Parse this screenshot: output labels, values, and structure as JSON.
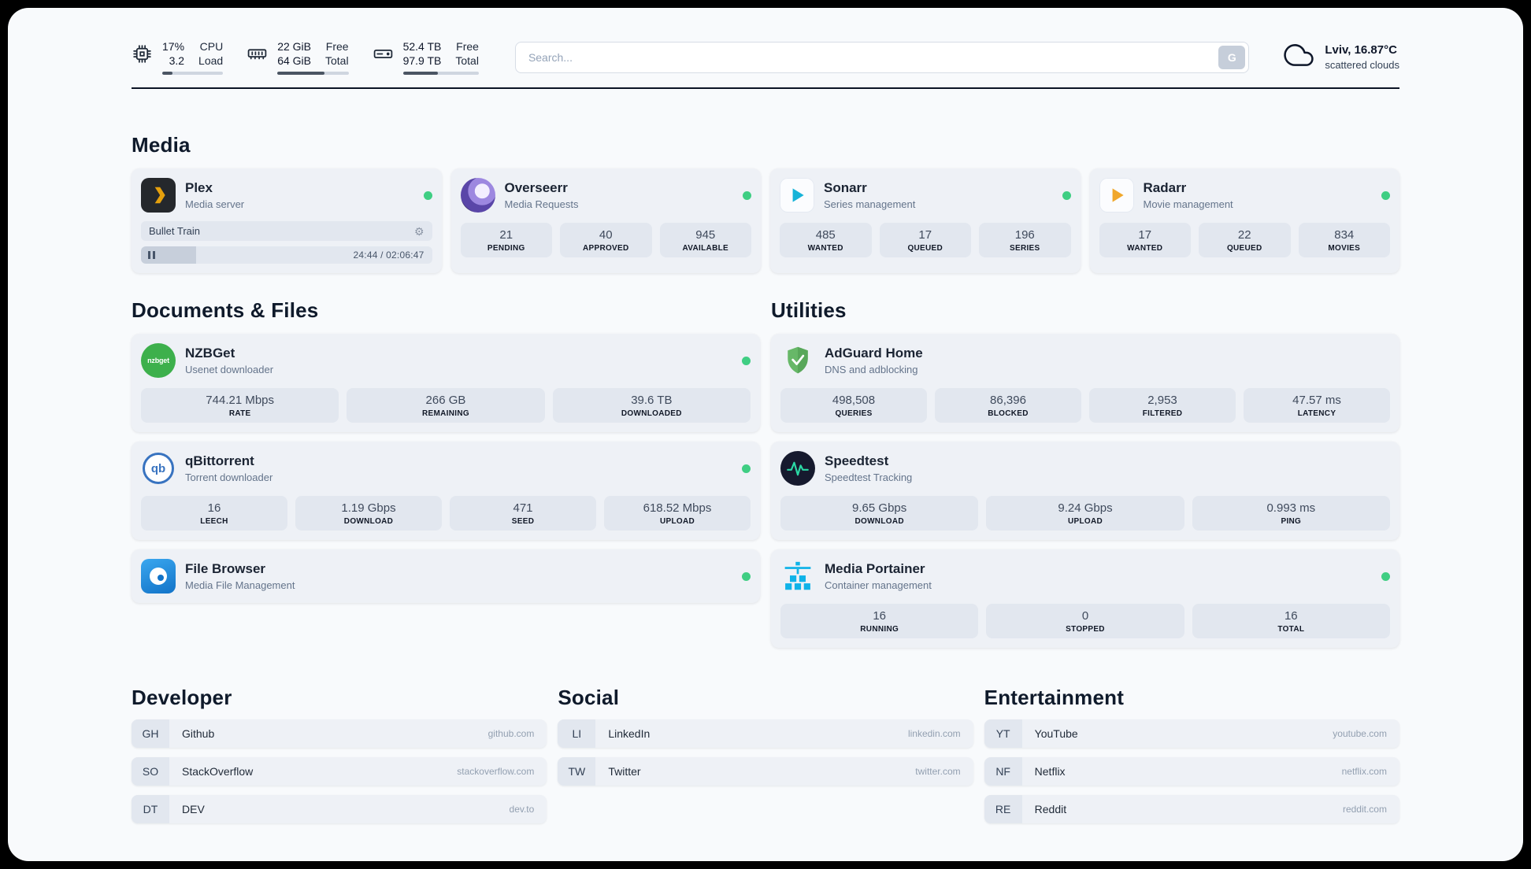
{
  "colors": {
    "status_online": "#3fce83",
    "accent_plex": "#e5a00d",
    "accent_sonarr": "#17b3d8",
    "accent_radarr": "#f0a72b",
    "accent_portainer": "#0fb3e8",
    "accent_speedtest": "#2bd9a5"
  },
  "icons": {
    "gear_glyph": "⚙",
    "cpu": "chip-icon",
    "memory": "ram-icon",
    "disk": "drive-icon",
    "weather": "cloud-icon"
  },
  "topbar": {
    "cpu": {
      "row1_left": "17%",
      "row1_right": "CPU",
      "row2_left": "3.2",
      "row2_right": "Load",
      "progress": 17
    },
    "memory": {
      "row1_left": "22 GiB",
      "row1_right": "Free",
      "row2_left": "64 GiB",
      "row2_right": "Total",
      "progress": 66
    },
    "disk": {
      "row1_left": "52.4 TB",
      "row1_right": "Free",
      "row2_left": "97.9 TB",
      "row2_right": "Total",
      "progress": 46
    },
    "search": {
      "placeholder": "Search...",
      "button_label": "G"
    },
    "weather": {
      "location": "Lviv, 16.87°C",
      "condition": "scattered clouds"
    }
  },
  "sections": {
    "media": {
      "title": "Media",
      "plex": {
        "name": "Plex",
        "desc": "Media server",
        "player": {
          "title": "Bullet Train",
          "time": "24:44 / 02:06:47",
          "progress": 19
        }
      },
      "overseerr": {
        "name": "Overseerr",
        "desc": "Media Requests",
        "stats": [
          {
            "value": "21",
            "label": "PENDING"
          },
          {
            "value": "40",
            "label": "APPROVED"
          },
          {
            "value": "945",
            "label": "AVAILABLE"
          }
        ]
      },
      "sonarr": {
        "name": "Sonarr",
        "desc": "Series management",
        "stats": [
          {
            "value": "485",
            "label": "WANTED"
          },
          {
            "value": "17",
            "label": "QUEUED"
          },
          {
            "value": "196",
            "label": "SERIES"
          }
        ]
      },
      "radarr": {
        "name": "Radarr",
        "desc": "Movie management",
        "stats": [
          {
            "value": "17",
            "label": "WANTED"
          },
          {
            "value": "22",
            "label": "QUEUED"
          },
          {
            "value": "834",
            "label": "MOVIES"
          }
        ]
      }
    },
    "documents": {
      "title": "Documents & Files",
      "nzbget": {
        "name": "NZBGet",
        "desc": "Usenet downloader",
        "icon_text": "nzbget",
        "stats": [
          {
            "value": "744.21 Mbps",
            "label": "RATE"
          },
          {
            "value": "266 GB",
            "label": "REMAINING"
          },
          {
            "value": "39.6 TB",
            "label": "DOWNLOADED"
          }
        ]
      },
      "qbittorrent": {
        "name": "qBittorrent",
        "desc": "Torrent downloader",
        "icon_text": "qb",
        "stats": [
          {
            "value": "16",
            "label": "LEECH"
          },
          {
            "value": "1.19 Gbps",
            "label": "DOWNLOAD"
          },
          {
            "value": "471",
            "label": "SEED"
          },
          {
            "value": "618.52 Mbps",
            "label": "UPLOAD"
          }
        ]
      },
      "filebrowser": {
        "name": "File Browser",
        "desc": "Media File Management"
      }
    },
    "utilities": {
      "title": "Utilities",
      "adguard": {
        "name": "AdGuard Home",
        "desc": "DNS and adblocking",
        "stats": [
          {
            "value": "498,508",
            "label": "QUERIES"
          },
          {
            "value": "86,396",
            "label": "BLOCKED"
          },
          {
            "value": "2,953",
            "label": "FILTERED"
          },
          {
            "value": "47.57 ms",
            "label": "LATENCY"
          }
        ]
      },
      "speedtest": {
        "name": "Speedtest",
        "desc": "Speedtest Tracking",
        "stats": [
          {
            "value": "9.65 Gbps",
            "label": "DOWNLOAD"
          },
          {
            "value": "9.24 Gbps",
            "label": "UPLOAD"
          },
          {
            "value": "0.993 ms",
            "label": "PING"
          }
        ]
      },
      "portainer": {
        "name": "Media Portainer",
        "desc": "Container management",
        "stats": [
          {
            "value": "16",
            "label": "RUNNING"
          },
          {
            "value": "0",
            "label": "STOPPED"
          },
          {
            "value": "16",
            "label": "TOTAL"
          }
        ]
      }
    },
    "developer": {
      "title": "Developer",
      "bookmarks": [
        {
          "abbr": "GH",
          "name": "Github",
          "url": "github.com"
        },
        {
          "abbr": "SO",
          "name": "StackOverflow",
          "url": "stackoverflow.com"
        },
        {
          "abbr": "DT",
          "name": "DEV",
          "url": "dev.to"
        }
      ]
    },
    "social": {
      "title": "Social",
      "bookmarks": [
        {
          "abbr": "LI",
          "name": "LinkedIn",
          "url": "linkedin.com"
        },
        {
          "abbr": "TW",
          "name": "Twitter",
          "url": "twitter.com"
        }
      ]
    },
    "entertainment": {
      "title": "Entertainment",
      "bookmarks": [
        {
          "abbr": "YT",
          "name": "YouTube",
          "url": "youtube.com"
        },
        {
          "abbr": "NF",
          "name": "Netflix",
          "url": "netflix.com"
        },
        {
          "abbr": "RE",
          "name": "Reddit",
          "url": "reddit.com"
        }
      ]
    }
  }
}
